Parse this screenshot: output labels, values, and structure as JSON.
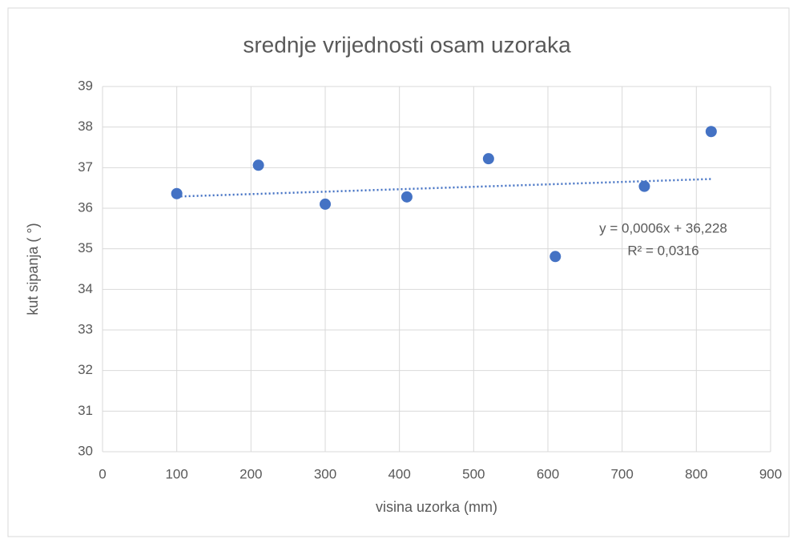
{
  "chart_data": {
    "type": "scatter",
    "title": "srednje vrijednosti osam uzoraka",
    "x_label": "visina uzorka (mm)",
    "y_label": "kut sipanja ( °)",
    "x": [
      100,
      210,
      300,
      410,
      520,
      610,
      730,
      820
    ],
    "values": [
      36.36,
      37.06,
      36.1,
      36.28,
      37.22,
      34.81,
      36.54,
      37.89
    ],
    "color": "#4472c4",
    "xlim": [
      0,
      900
    ],
    "xticks": [
      0,
      100,
      200,
      300,
      400,
      500,
      600,
      700,
      800,
      900
    ],
    "ylim": [
      30,
      39
    ],
    "yticks": [
      30,
      31,
      32,
      33,
      34,
      35,
      36,
      37,
      38,
      39
    ],
    "grid": true,
    "trendline": {
      "slope": 0.0006,
      "intercept": 36.228,
      "equation": "y = 0,0006x + 36,228",
      "r_squared": "R² = 0,0316"
    }
  }
}
